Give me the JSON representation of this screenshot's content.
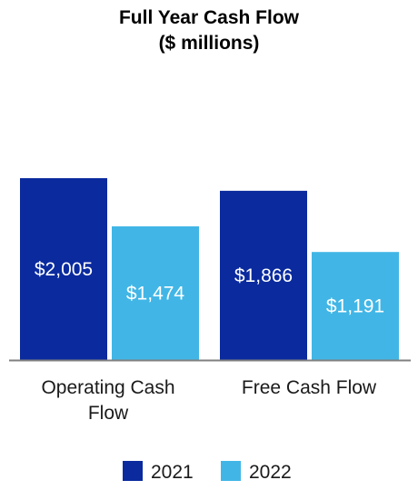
{
  "chart_data": {
    "type": "bar",
    "title": [
      "Full Year Cash Flow",
      "($ millions)"
    ],
    "categories": [
      [
        "Operating Cash",
        "Flow"
      ],
      [
        "Free Cash Flow"
      ]
    ],
    "series": [
      {
        "name": "2021",
        "color": "#0a2a9e",
        "values": [
          2005,
          1866
        ],
        "labels": [
          "$2,005",
          "$1,866"
        ]
      },
      {
        "name": "2022",
        "color": "#41b6e6",
        "values": [
          1474,
          1191
        ],
        "labels": [
          "$1,474",
          "$1,191"
        ]
      }
    ],
    "ylim": [
      0,
      2005
    ],
    "grid": false,
    "legend_position": "bottom",
    "axis_color": "#808080"
  }
}
